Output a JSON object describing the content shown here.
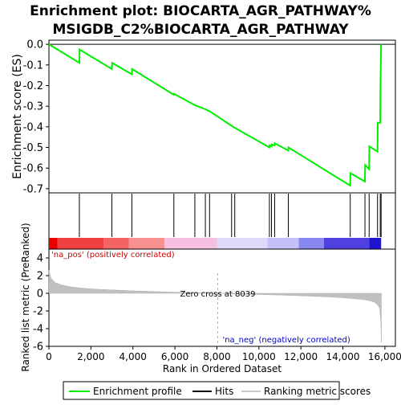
{
  "chart_data": {
    "type": "line",
    "title_line1": "Enrichment plot: BIOCARTA_AGR_PATHWAY%",
    "title_line2": "MSIGDB_C2%BIOCARTA_AGR_PATHWAY",
    "es_panel": {
      "ylabel": "Enrichment score (ES)",
      "ylim": [
        -0.72,
        0.02
      ],
      "yticks": [
        0.0,
        -0.1,
        -0.2,
        -0.3,
        -0.4,
        -0.5,
        -0.6,
        -0.7
      ],
      "ytick_labels": [
        "0.0",
        "-0.1",
        "-0.2",
        "-0.3",
        "-0.4",
        "-0.5",
        "-0.6",
        "-0.7"
      ],
      "series": [
        {
          "name": "Enrichment profile",
          "color": "#00ee00",
          "x": [
            0,
            1450,
            1460,
            3000,
            3010,
            3950,
            3960,
            5950,
            5960,
            6950,
            6960,
            7450,
            7460,
            7650,
            7660,
            8700,
            8710,
            8850,
            8860,
            10500,
            10510,
            10600,
            10610,
            10750,
            10760,
            11400,
            11410,
            14350,
            14360,
            15050,
            15060,
            15250,
            15260,
            15650,
            15660,
            15780,
            15790,
            15820
          ],
          "y": [
            0.0,
            -0.09,
            -0.025,
            -0.12,
            -0.09,
            -0.145,
            -0.12,
            -0.245,
            -0.24,
            -0.295,
            -0.295,
            -0.315,
            -0.315,
            -0.325,
            -0.325,
            -0.395,
            -0.395,
            -0.405,
            -0.405,
            -0.5,
            -0.49,
            -0.495,
            -0.485,
            -0.49,
            -0.48,
            -0.515,
            -0.5,
            -0.685,
            -0.625,
            -0.665,
            -0.585,
            -0.605,
            -0.495,
            -0.52,
            -0.38,
            -0.38,
            -0.2,
            0.0
          ]
        }
      ]
    },
    "hits": {
      "name": "Hits",
      "positions": [
        1450,
        3000,
        3950,
        5950,
        6950,
        7450,
        7650,
        8700,
        8850,
        10500,
        10600,
        10750,
        11400,
        14350,
        15050,
        15250,
        15650,
        15780,
        15820
      ]
    },
    "rank_panel": {
      "ylabel": "Ranked list metric (PreRanked)",
      "ylim": [
        -6,
        5
      ],
      "yticks": [
        4,
        2,
        0,
        -2,
        -4,
        -6
      ],
      "ytick_labels": [
        "4",
        "2",
        "0",
        "-2",
        "-4",
        "-6"
      ],
      "metric_name": "Ranking metric scores",
      "x": [
        0,
        100,
        300,
        600,
        1000,
        1500,
        2000,
        3000,
        4000,
        5000,
        6000,
        7000,
        8039,
        9000,
        10000,
        11000,
        12000,
        13000,
        14000,
        14500,
        15000,
        15300,
        15500,
        15650,
        15750,
        15800,
        15830
      ],
      "y": [
        2.6,
        1.7,
        1.2,
        0.95,
        0.75,
        0.6,
        0.5,
        0.38,
        0.28,
        0.2,
        0.13,
        0.06,
        0.0,
        -0.08,
        -0.14,
        -0.2,
        -0.28,
        -0.37,
        -0.5,
        -0.6,
        -0.72,
        -0.85,
        -1.0,
        -1.3,
        -1.7,
        -3.0,
        -5.6
      ],
      "zero_cross_label": "Zero cross at 8039",
      "zero_cross": 8039,
      "pos_label": "'na_pos' (positively correlated)",
      "neg_label": "'na_neg' (negatively correlated)"
    },
    "xaxis": {
      "xlabel": "Rank in Ordered Dataset",
      "xlim": [
        0,
        16500
      ],
      "xticks": [
        0,
        2000,
        4000,
        6000,
        8000,
        10000,
        12000,
        14000,
        16000
      ],
      "xtick_labels": [
        "0",
        "2,000",
        "4,000",
        "6,000",
        "8,000",
        "10,000",
        "12,000",
        "14,000",
        "16,000"
      ]
    },
    "color_bar": {
      "segments": [
        {
          "end": 400,
          "color": "#e60000"
        },
        {
          "end": 2600,
          "color": "#f04040"
        },
        {
          "end": 3800,
          "color": "#f46464"
        },
        {
          "end": 5500,
          "color": "#f89090"
        },
        {
          "end": 8000,
          "color": "#f8c0e0"
        },
        {
          "end": 10400,
          "color": "#e0d8f8"
        },
        {
          "end": 11900,
          "color": "#c4c0f8"
        },
        {
          "end": 13100,
          "color": "#8888f0"
        },
        {
          "end": 15250,
          "color": "#5040e0"
        },
        {
          "end": 15820,
          "color": "#1e14cc"
        }
      ]
    },
    "legend": {
      "items": [
        {
          "label": "Enrichment profile",
          "color": "#00ee00"
        },
        {
          "label": "Hits",
          "color": "#000000"
        },
        {
          "label": "Ranking metric scores",
          "color": "#c8c8c8"
        }
      ]
    }
  }
}
